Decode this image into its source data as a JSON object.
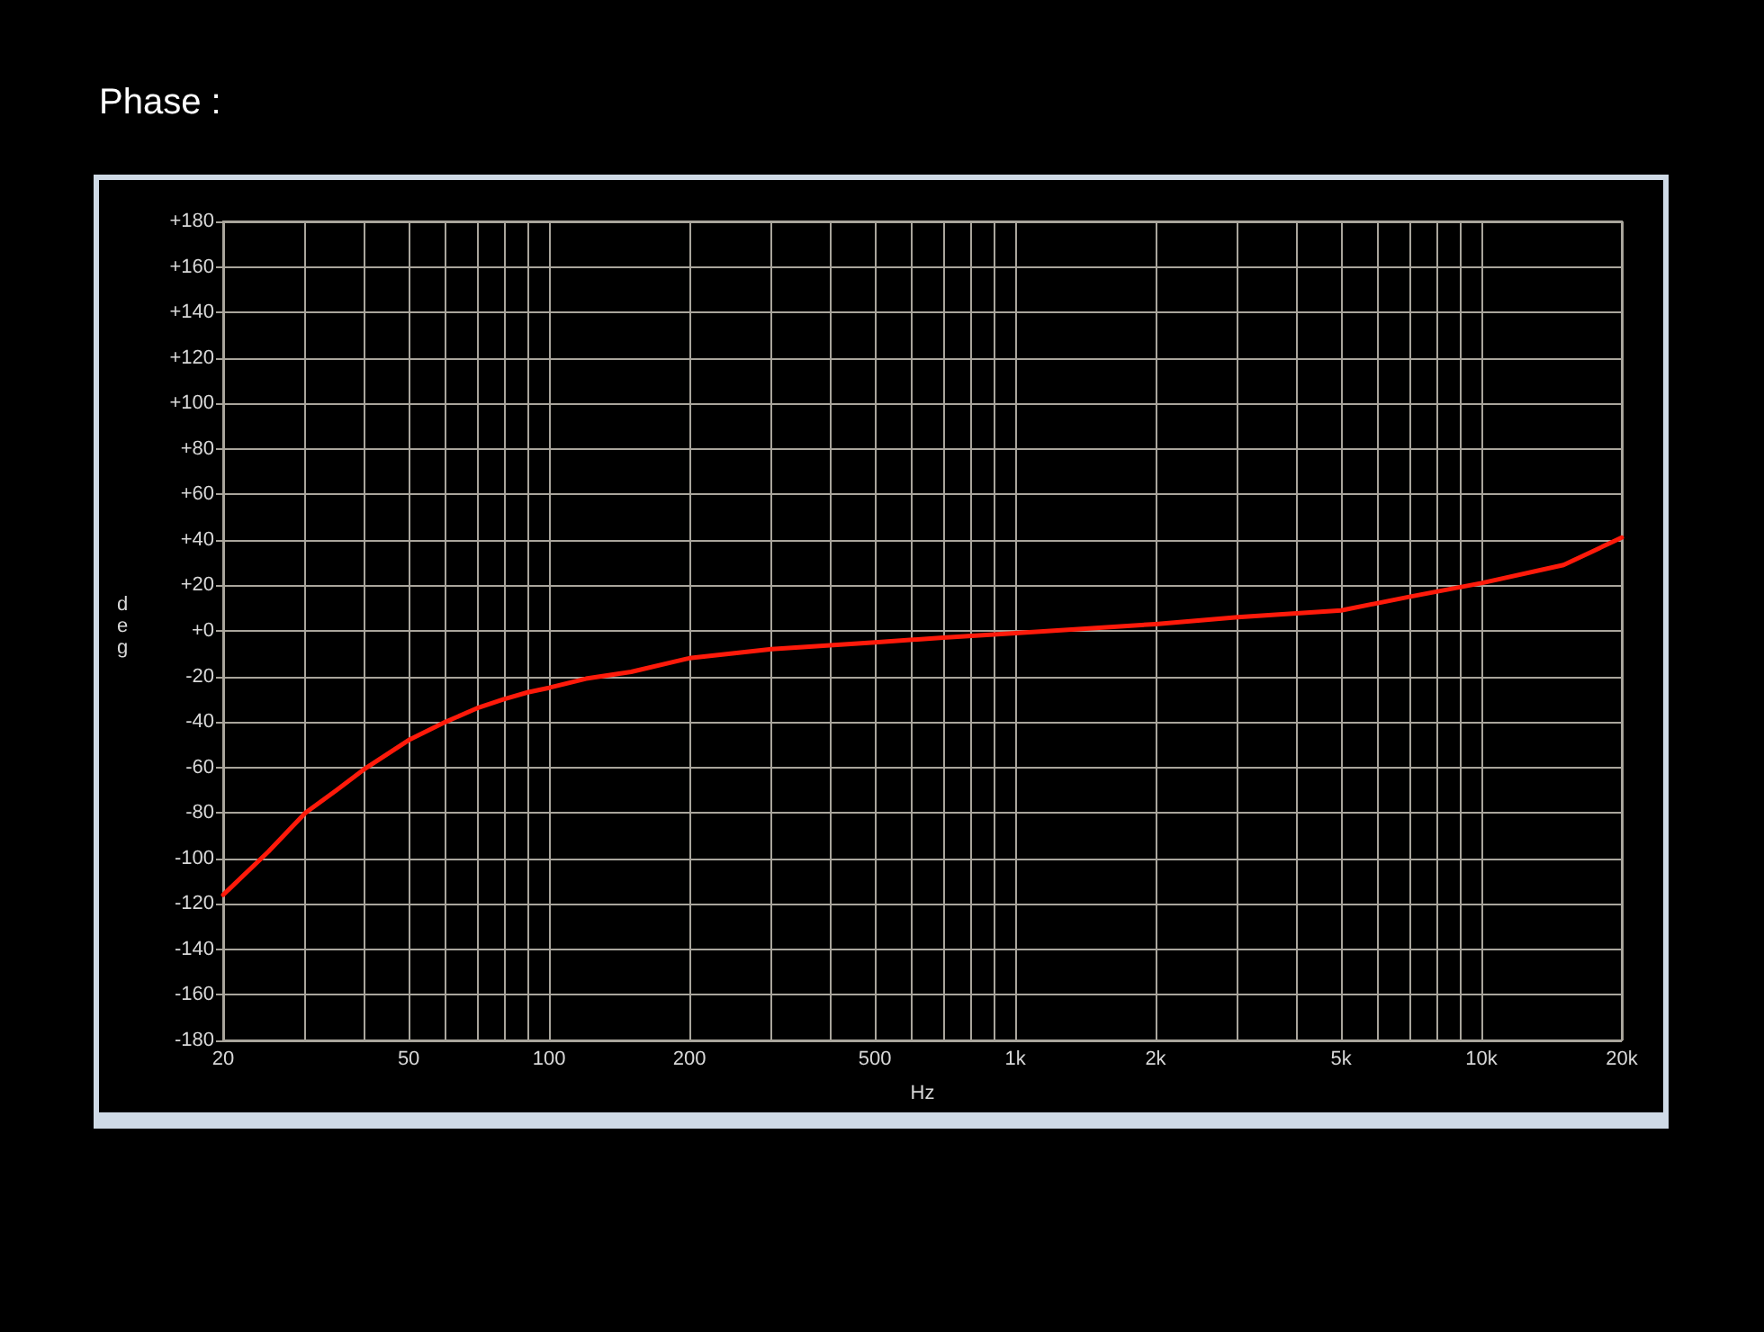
{
  "chart_data": {
    "type": "line",
    "title": "Phase :",
    "xlabel": "Hz",
    "ylabel": "deg",
    "x": [
      20,
      25,
      30,
      35,
      40,
      50,
      60,
      70,
      80,
      90,
      100,
      120,
      150,
      200,
      300,
      500,
      700,
      1000,
      2000,
      3000,
      5000,
      7000,
      10000,
      15000,
      20000
    ],
    "series": [
      {
        "color": "#ff1a0a",
        "values": [
          -116,
          -97,
          -80,
          -70,
          -61,
          -48,
          -40,
          -34,
          -30,
          -27,
          -25,
          -21,
          -18,
          -12,
          -8,
          -5,
          -3,
          -1,
          3,
          6,
          9,
          15,
          21,
          29,
          41
        ]
      }
    ],
    "log": "x",
    "grid": true,
    "marker": "none",
    "line_style": "solid",
    "xlim": [
      20,
      20000
    ],
    "xticks": [
      20,
      {
        "value": 30,
        "label": null
      },
      {
        "value": 40,
        "label": null
      },
      50,
      {
        "value": 60,
        "label": null
      },
      {
        "value": 70,
        "label": null
      },
      {
        "value": 80,
        "label": null
      },
      {
        "value": 90,
        "label": null
      },
      100,
      200,
      {
        "value": 300,
        "label": null
      },
      {
        "value": 400,
        "label": null
      },
      500,
      {
        "value": 600,
        "label": null
      },
      {
        "value": 700,
        "label": null
      },
      {
        "value": 800,
        "label": null
      },
      {
        "value": 900,
        "label": null
      },
      {
        "value": 1000,
        "label": "1k"
      },
      {
        "value": 2000,
        "label": "2k"
      },
      {
        "value": 3000,
        "label": null
      },
      {
        "value": 4000,
        "label": null
      },
      {
        "value": 5000,
        "label": "5k"
      },
      {
        "value": 6000,
        "label": null
      },
      {
        "value": 7000,
        "label": null
      },
      {
        "value": 8000,
        "label": null
      },
      {
        "value": 9000,
        "label": null
      },
      {
        "value": 10000,
        "label": "10k"
      },
      {
        "value": 20000,
        "label": "20k"
      }
    ],
    "ylim": [
      -180,
      180
    ],
    "yticks": [
      {
        "value": -180,
        "label": "-180"
      },
      {
        "value": -160,
        "label": "-160"
      },
      {
        "value": -140,
        "label": "-140"
      },
      {
        "value": -120,
        "label": "-120"
      },
      {
        "value": -100,
        "label": "-100"
      },
      {
        "value": -80,
        "label": "-80"
      },
      {
        "value": -60,
        "label": "-60"
      },
      {
        "value": -40,
        "label": "-40"
      },
      {
        "value": -20,
        "label": "-20"
      },
      {
        "value": 0,
        "label": "+0"
      },
      {
        "value": 20,
        "label": "+20"
      },
      {
        "value": 40,
        "label": "+40"
      },
      {
        "value": 60,
        "label": "+60"
      },
      {
        "value": 80,
        "label": "+80"
      },
      {
        "value": 100,
        "label": "+100"
      },
      {
        "value": 120,
        "label": "+120"
      },
      {
        "value": 140,
        "label": "+140"
      },
      {
        "value": 160,
        "label": "+160"
      },
      {
        "value": 180,
        "label": "+180"
      }
    ]
  }
}
